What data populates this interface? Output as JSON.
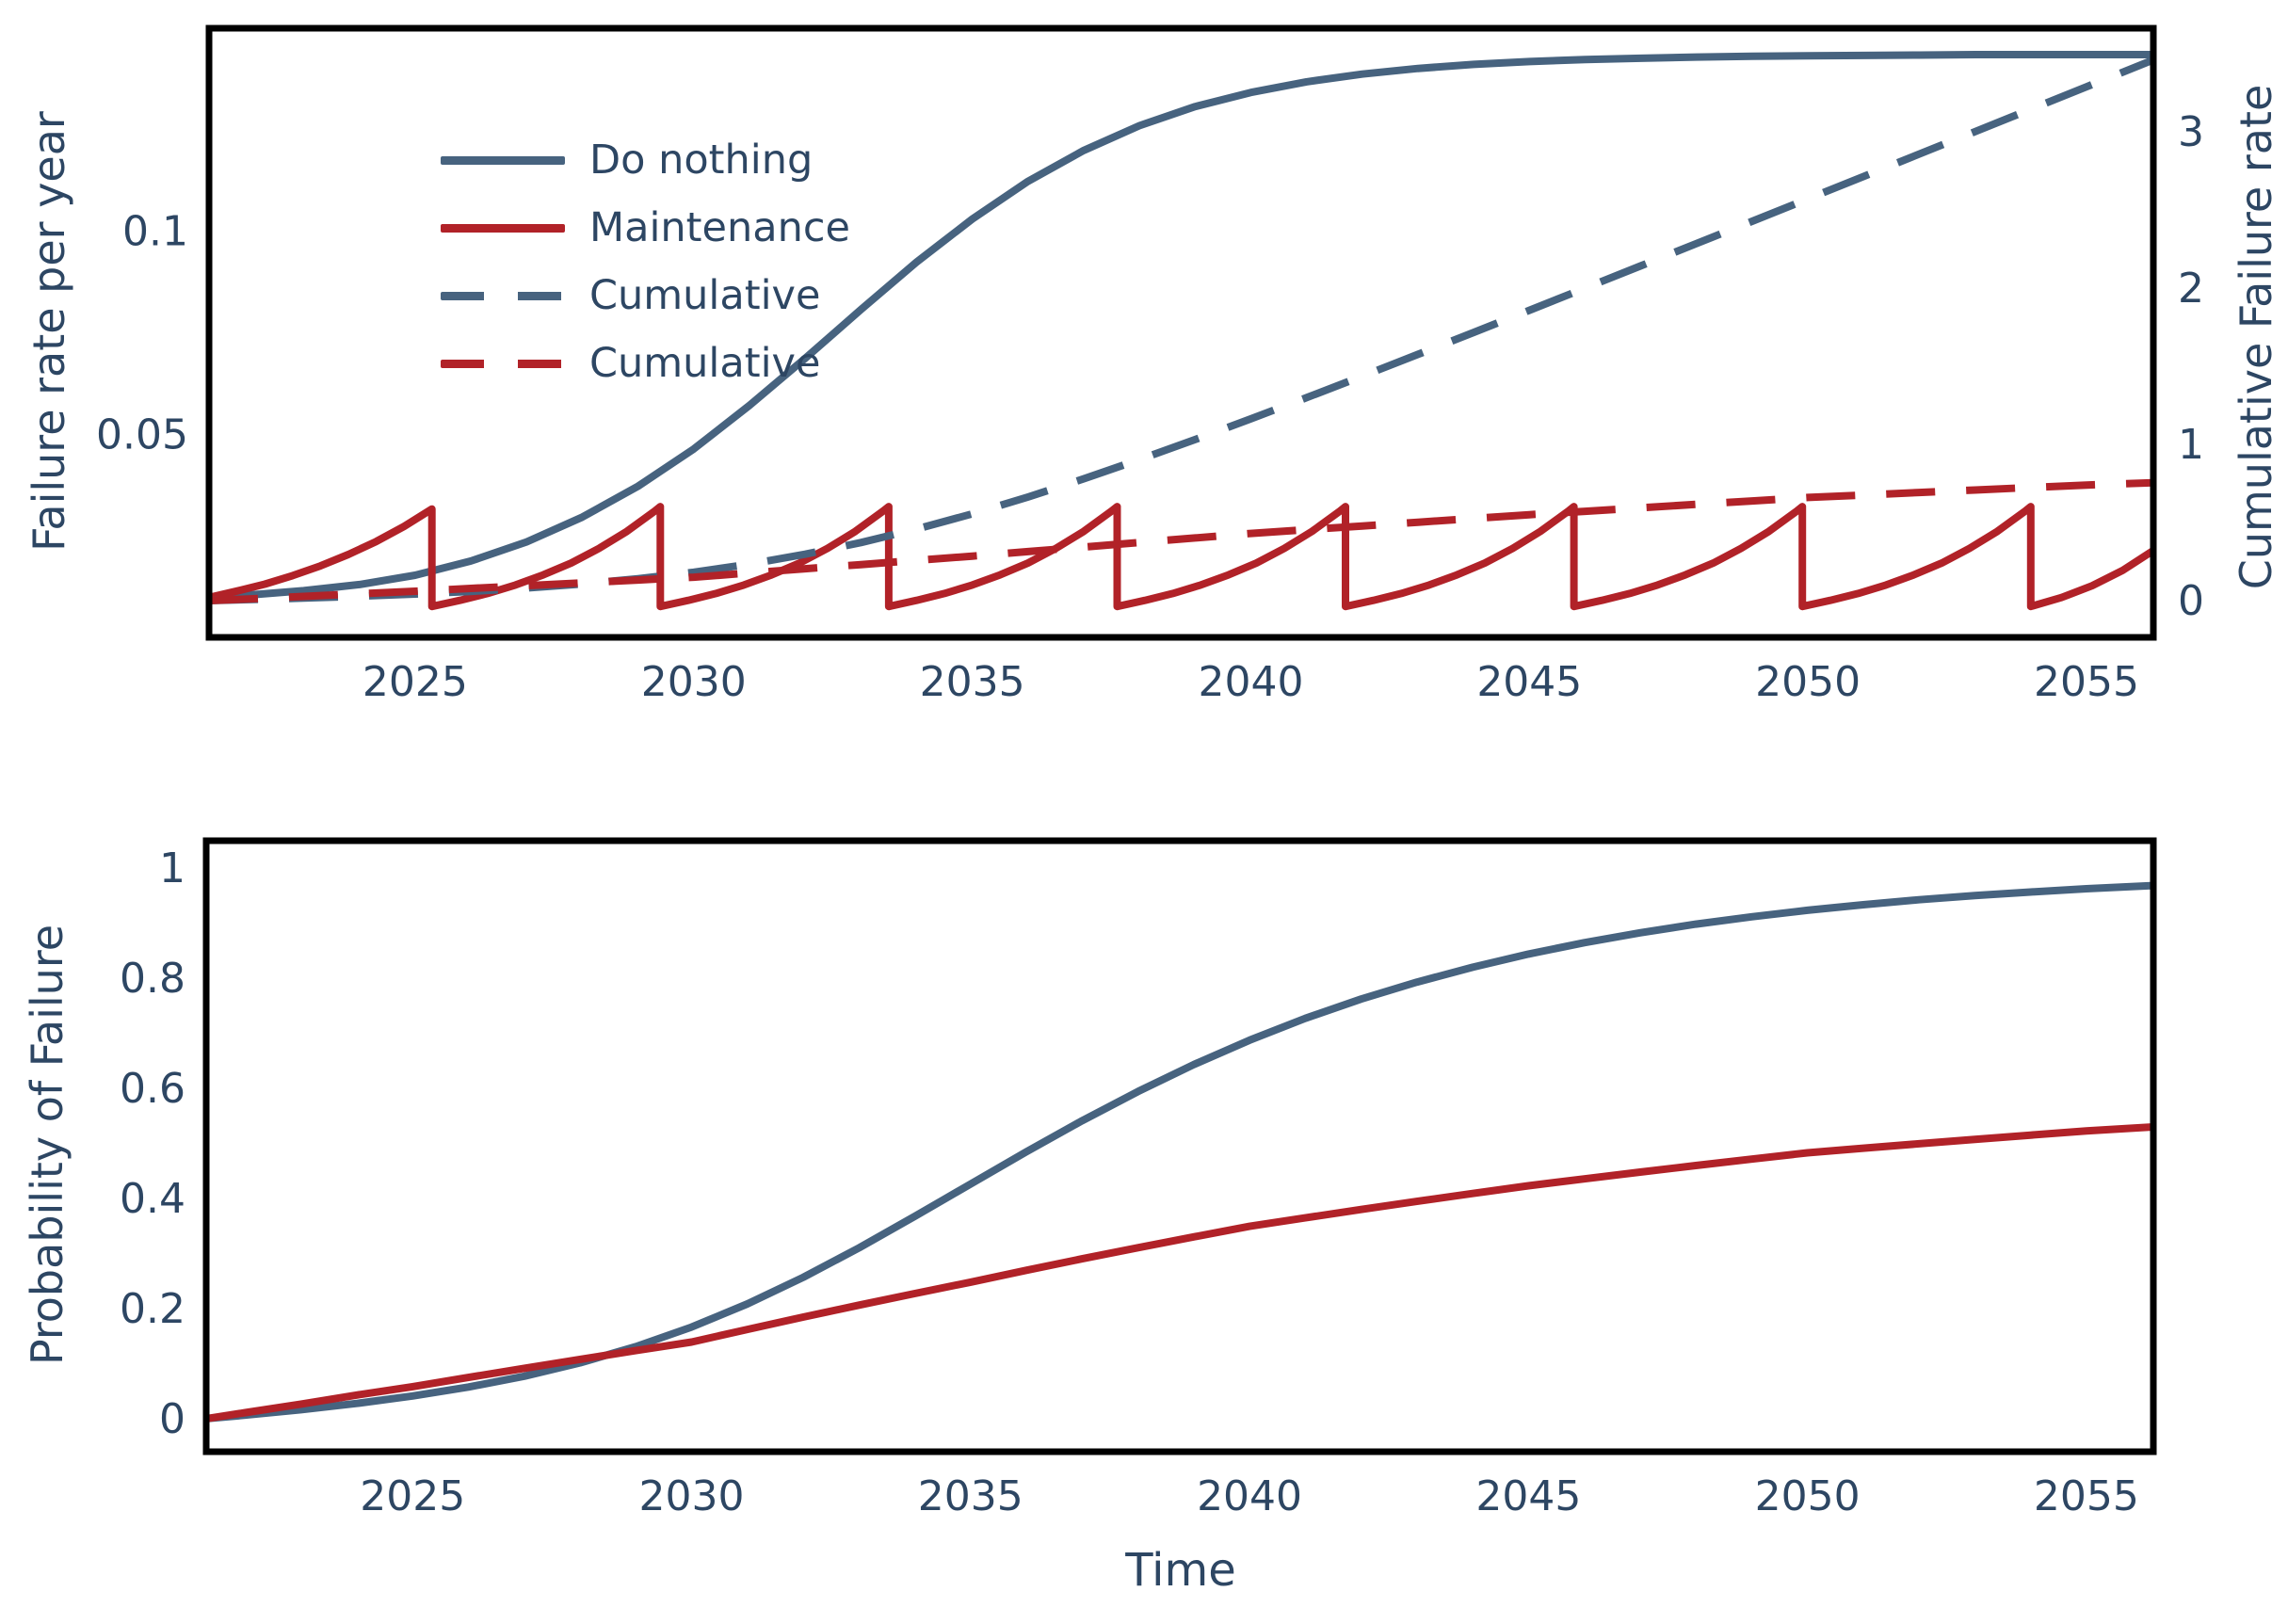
{
  "figure": {
    "background": "#ffffff",
    "text_color": "#2d4663",
    "blue": "#47637f",
    "red": "#b12228",
    "frame_color": "#000000"
  },
  "labels": {
    "top_ylabel_left": "Failure rate per year",
    "top_ylabel_right": "Cumulative Failure rate",
    "bottom_ylabel": "Probability of Failure",
    "bottom_xlabel": "Time"
  },
  "chart_data": [
    {
      "type": "line",
      "title": "",
      "xlabel": "",
      "ylabel_left": "Failure rate per year",
      "ylabel_right": "Cumulative Failure rate",
      "x_range": [
        2021.3,
        2056.2
      ],
      "y_range_left": [
        0,
        0.15
      ],
      "y_range_right": [
        -0.235,
        3.663
      ],
      "x_ticks": [
        2025,
        2030,
        2035,
        2040,
        2045,
        2050,
        2055
      ],
      "y_ticks_left": [
        0.05,
        0.1
      ],
      "y_ticks_right": [
        0,
        1,
        2,
        3
      ],
      "grid": false,
      "legend_position": "upper-left-inside",
      "legend": [
        {
          "label": "Do nothing",
          "color": "blue",
          "dash": false
        },
        {
          "label": "Maintenance",
          "color": "red",
          "dash": false
        },
        {
          "label": "Cumulative",
          "color": "blue",
          "dash": true
        },
        {
          "label": "Cumulative",
          "color": "red",
          "dash": true
        }
      ],
      "series": [
        {
          "name": "Do nothing",
          "axis": "left",
          "color": "blue",
          "dash": false,
          "x": [
            2021.3,
            2022,
            2023,
            2024,
            2025,
            2026,
            2027,
            2028,
            2029,
            2030,
            2031,
            2032,
            2033,
            2034,
            2035,
            2036,
            2037,
            2038,
            2039,
            2040,
            2041,
            2042,
            2043,
            2044,
            2045,
            2046,
            2047,
            2048,
            2049,
            2050,
            2051,
            2052,
            2053,
            2054,
            2055,
            2056.2
          ],
          "y": [
            0.0098,
            0.0104,
            0.0115,
            0.013,
            0.0153,
            0.0188,
            0.0235,
            0.0296,
            0.0372,
            0.0464,
            0.0571,
            0.0687,
            0.0807,
            0.0924,
            0.103,
            0.1123,
            0.1199,
            0.126,
            0.1307,
            0.1342,
            0.1368,
            0.1387,
            0.1401,
            0.1411,
            0.1418,
            0.1423,
            0.1426,
            0.1429,
            0.1431,
            0.1432,
            0.1433,
            0.1434,
            0.1435,
            0.1435,
            0.1435,
            0.1435
          ]
        },
        {
          "name": "Maintenance",
          "axis": "left",
          "color": "red",
          "dash": false,
          "x": [
            2021.3,
            2021.8,
            2022.3,
            2022.8,
            2023.3,
            2023.8,
            2024.3,
            2024.8,
            2025.3,
            2025.3,
            2025.8,
            2026.3,
            2026.8,
            2027.3,
            2027.8,
            2028.3,
            2028.8,
            2029.3,
            2029.4,
            2029.4,
            2029.9,
            2030.4,
            2030.9,
            2031.4,
            2031.9,
            2032.4,
            2032.9,
            2033.4,
            2033.5,
            2033.5,
            2034,
            2034.5,
            2035,
            2035.5,
            2036,
            2036.5,
            2037,
            2037.5,
            2037.6,
            2037.6,
            2038.1,
            2038.6,
            2039.1,
            2039.6,
            2040.1,
            2040.6,
            2041.1,
            2041.6,
            2041.7,
            2041.7,
            2042.2,
            2042.7,
            2043.2,
            2043.7,
            2044.2,
            2044.7,
            2045.2,
            2045.7,
            2045.8,
            2045.8,
            2046.3,
            2046.8,
            2047.3,
            2047.8,
            2048.3,
            2048.8,
            2049.3,
            2049.8,
            2049.9,
            2049.9,
            2050.4,
            2050.9,
            2051.4,
            2051.9,
            2052.4,
            2052.9,
            2053.4,
            2053.9,
            2054,
            2054,
            2054.55,
            2055.1,
            2055.65,
            2056.2
          ],
          "y": [
            0.0098,
            0.0114,
            0.0131,
            0.0152,
            0.0176,
            0.0204,
            0.0236,
            0.0273,
            0.0316,
            0.0076,
            0.0091,
            0.0108,
            0.0129,
            0.0154,
            0.0183,
            0.0219,
            0.0261,
            0.0311,
            0.0322,
            0.0076,
            0.0091,
            0.0108,
            0.0129,
            0.0154,
            0.0183,
            0.0219,
            0.0261,
            0.0311,
            0.0322,
            0.0076,
            0.0091,
            0.0108,
            0.0129,
            0.0154,
            0.0183,
            0.0219,
            0.0261,
            0.0311,
            0.0322,
            0.0076,
            0.0091,
            0.0108,
            0.0129,
            0.0154,
            0.0183,
            0.0219,
            0.0261,
            0.0311,
            0.0322,
            0.0076,
            0.0091,
            0.0108,
            0.0129,
            0.0154,
            0.0183,
            0.0219,
            0.0261,
            0.0311,
            0.0322,
            0.0076,
            0.0091,
            0.0108,
            0.0129,
            0.0154,
            0.0183,
            0.0219,
            0.0261,
            0.0311,
            0.0322,
            0.0076,
            0.0091,
            0.0108,
            0.0129,
            0.0154,
            0.0183,
            0.0219,
            0.0261,
            0.0311,
            0.0322,
            0.0076,
            0.0098,
            0.0127,
            0.0165,
            0.0214
          ]
        },
        {
          "name": "Cumulative (Do nothing)",
          "axis": "right",
          "color": "blue",
          "dash": true,
          "x": [
            2021.3,
            2022,
            2023,
            2024,
            2025,
            2026,
            2027,
            2028,
            2029,
            2030,
            2031,
            2032,
            2033,
            2034,
            2035,
            2036,
            2037,
            2038,
            2039,
            2040,
            2041,
            2042,
            2043,
            2044,
            2045,
            2046,
            2047,
            2048,
            2049,
            2050,
            2051,
            2052,
            2053,
            2054,
            2055,
            2056.2
          ],
          "y": [
            0,
            0.0063,
            0.0164,
            0.0282,
            0.0422,
            0.0592,
            0.0804,
            0.1069,
            0.1403,
            0.1821,
            0.2339,
            0.2968,
            0.3715,
            0.458,
            0.5557,
            0.6634,
            0.7795,
            0.9024,
            1.0308,
            1.1632,
            1.2987,
            1.4365,
            1.5759,
            1.7165,
            1.8579,
            2.0,
            2.1424,
            2.2852,
            2.4282,
            2.5713,
            2.7146,
            2.8579,
            3.0014,
            3.1449,
            3.2884,
            3.4606
          ]
        },
        {
          "name": "Cumulative (Maintenance)",
          "axis": "right",
          "color": "red",
          "dash": true,
          "x": [
            2021.3,
            2022,
            2023,
            2024,
            2025,
            2026,
            2027,
            2028,
            2029,
            2030,
            2031,
            2032,
            2033,
            2034,
            2035,
            2036,
            2037,
            2038,
            2039,
            2040,
            2041,
            2042,
            2043,
            2044,
            2045,
            2046,
            2047,
            2048,
            2049,
            2050,
            2051,
            2052,
            2053,
            2054,
            2055,
            2056.2
          ],
          "y": [
            0,
            0.011,
            0.027,
            0.044,
            0.06,
            0.078,
            0.096,
            0.114,
            0.132,
            0.15,
            0.177,
            0.204,
            0.231,
            0.258,
            0.285,
            0.314,
            0.343,
            0.372,
            0.401,
            0.43,
            0.454,
            0.478,
            0.502,
            0.526,
            0.55,
            0.572,
            0.594,
            0.616,
            0.638,
            0.66,
            0.676,
            0.692,
            0.708,
            0.724,
            0.74,
            0.755
          ]
        }
      ]
    },
    {
      "type": "line",
      "title": "",
      "xlabel": "Time",
      "ylabel_left": "Probability of Failure",
      "x_range": [
        2021.3,
        2056.2
      ],
      "y_range_left": [
        -0.06,
        1.05
      ],
      "x_ticks": [
        2025,
        2030,
        2035,
        2040,
        2045,
        2050,
        2055
      ],
      "y_ticks_left": [
        0,
        0.2,
        0.4,
        0.6,
        0.8,
        1
      ],
      "grid": false,
      "series": [
        {
          "name": "Do nothing",
          "axis": "left",
          "color": "blue",
          "dash": false,
          "x": [
            2021.3,
            2022,
            2023,
            2024,
            2025,
            2026,
            2027,
            2028,
            2029,
            2030,
            2031,
            2032,
            2033,
            2034,
            2035,
            2036,
            2037,
            2038,
            2039,
            2040,
            2041,
            2042,
            2043,
            2044,
            2045,
            2046,
            2047,
            2048,
            2049,
            2050,
            2051,
            2052,
            2053,
            2054,
            2055,
            2056.2
          ],
          "y": [
            0,
            0.0063,
            0.0163,
            0.0278,
            0.0413,
            0.0575,
            0.0772,
            0.1014,
            0.1309,
            0.1665,
            0.2086,
            0.2568,
            0.3103,
            0.3675,
            0.4263,
            0.4849,
            0.5414,
            0.5944,
            0.6433,
            0.6876,
            0.7272,
            0.7623,
            0.7931,
            0.8202,
            0.844,
            0.8647,
            0.8827,
            0.8984,
            0.9118,
            0.9236,
            0.9337,
            0.9427,
            0.9503,
            0.9568,
            0.9627,
            0.9686
          ]
        },
        {
          "name": "Maintenance",
          "axis": "left",
          "color": "red",
          "dash": false,
          "x": [
            2021.3,
            2022,
            2023,
            2024,
            2025,
            2026,
            2027,
            2028,
            2029,
            2030,
            2031,
            2032,
            2033,
            2034,
            2035,
            2036,
            2037,
            2038,
            2039,
            2040,
            2041,
            2042,
            2043,
            2044,
            2045,
            2046,
            2047,
            2048,
            2049,
            2050,
            2051,
            2052,
            2053,
            2054,
            2055,
            2056.2
          ],
          "y": [
            0,
            0.0109,
            0.0266,
            0.043,
            0.0582,
            0.075,
            0.0915,
            0.1077,
            0.1237,
            0.1393,
            0.1622,
            0.1845,
            0.2063,
            0.2274,
            0.248,
            0.2695,
            0.2904,
            0.3106,
            0.3303,
            0.3495,
            0.3649,
            0.38,
            0.3947,
            0.4091,
            0.4231,
            0.4357,
            0.4479,
            0.4599,
            0.4716,
            0.4831,
            0.4914,
            0.4995,
            0.5074,
            0.5152,
            0.5229,
            0.53
          ]
        }
      ]
    }
  ]
}
